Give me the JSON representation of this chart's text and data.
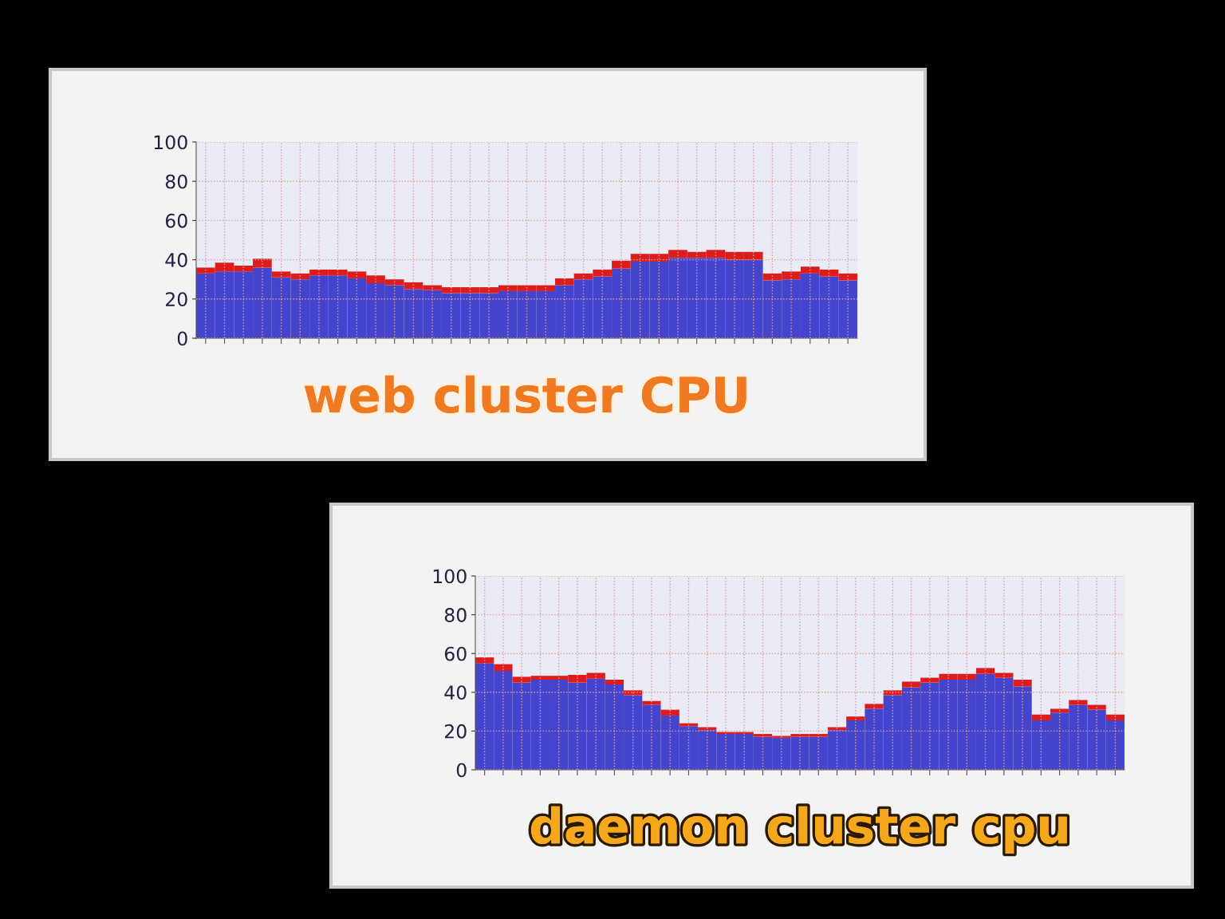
{
  "chart_data": [
    {
      "type": "bar",
      "stacked": true,
      "title": "web cluster CPU",
      "categories": [
        null,
        null,
        null,
        null,
        null,
        null,
        null,
        null,
        null,
        null,
        null,
        null,
        null,
        null,
        null,
        null,
        null,
        null,
        null,
        null,
        null,
        null,
        null,
        null,
        null,
        null,
        null,
        null,
        null,
        null,
        null,
        null,
        null,
        null,
        null
      ],
      "series": [
        {
          "color": "#4444cc",
          "values": [
            33,
            34,
            34,
            36,
            31,
            30,
            32,
            32,
            30.5,
            28,
            27,
            25,
            24.5,
            23,
            23,
            23,
            24,
            24,
            24,
            27,
            30,
            31.5,
            35.5,
            39,
            39,
            41,
            41,
            41,
            40,
            40,
            29.5,
            30,
            33,
            31.5,
            29.5
          ]
        },
        {
          "color": "#dd1c1c",
          "values": [
            3,
            4.5,
            3,
            4.5,
            3,
            3,
            3,
            3,
            3.5,
            4,
            3,
            3.5,
            2.5,
            3,
            3,
            3,
            3,
            3,
            3,
            3.5,
            3,
            3.5,
            4,
            4,
            4,
            4,
            3,
            4,
            4,
            4,
            3.5,
            4,
            3.5,
            3.5,
            3.5
          ]
        }
      ],
      "ylim": [
        0,
        100
      ],
      "yticks": [
        0,
        20,
        40,
        60,
        80,
        100
      ],
      "grid": true
    },
    {
      "type": "bar",
      "stacked": true,
      "title": "daemon cluster cpu",
      "categories": [
        null,
        null,
        null,
        null,
        null,
        null,
        null,
        null,
        null,
        null,
        null,
        null,
        null,
        null,
        null,
        null,
        null,
        null,
        null,
        null,
        null,
        null,
        null,
        null,
        null,
        null,
        null,
        null,
        null,
        null,
        null,
        null,
        null,
        null,
        null
      ],
      "series": [
        {
          "color": "#4444cc",
          "values": [
            55,
            51,
            45,
            46.5,
            46.5,
            45,
            47,
            44,
            38.5,
            33.5,
            28,
            22.5,
            20.5,
            18.5,
            18.5,
            17,
            16.5,
            17,
            17,
            20.5,
            25.5,
            31.5,
            38.5,
            42.5,
            45,
            46.5,
            46.5,
            49.5,
            47.5,
            43,
            25.5,
            29.5,
            33.5,
            31,
            25.5
          ]
        },
        {
          "color": "#dd1c1c",
          "values": [
            3,
            3.5,
            3,
            2,
            2,
            4,
            3,
            2.5,
            2.5,
            2,
            3,
            1.5,
            1.5,
            1,
            1,
            1.5,
            1,
            1.5,
            1.5,
            1.5,
            2,
            2.5,
            2.5,
            3,
            2.5,
            3,
            3,
            3,
            2.5,
            3.5,
            3,
            2,
            2.5,
            2.5,
            3
          ]
        }
      ],
      "ylim": [
        0,
        100
      ],
      "yticks": [
        0,
        20,
        40,
        60,
        80,
        100
      ],
      "grid": true
    }
  ]
}
